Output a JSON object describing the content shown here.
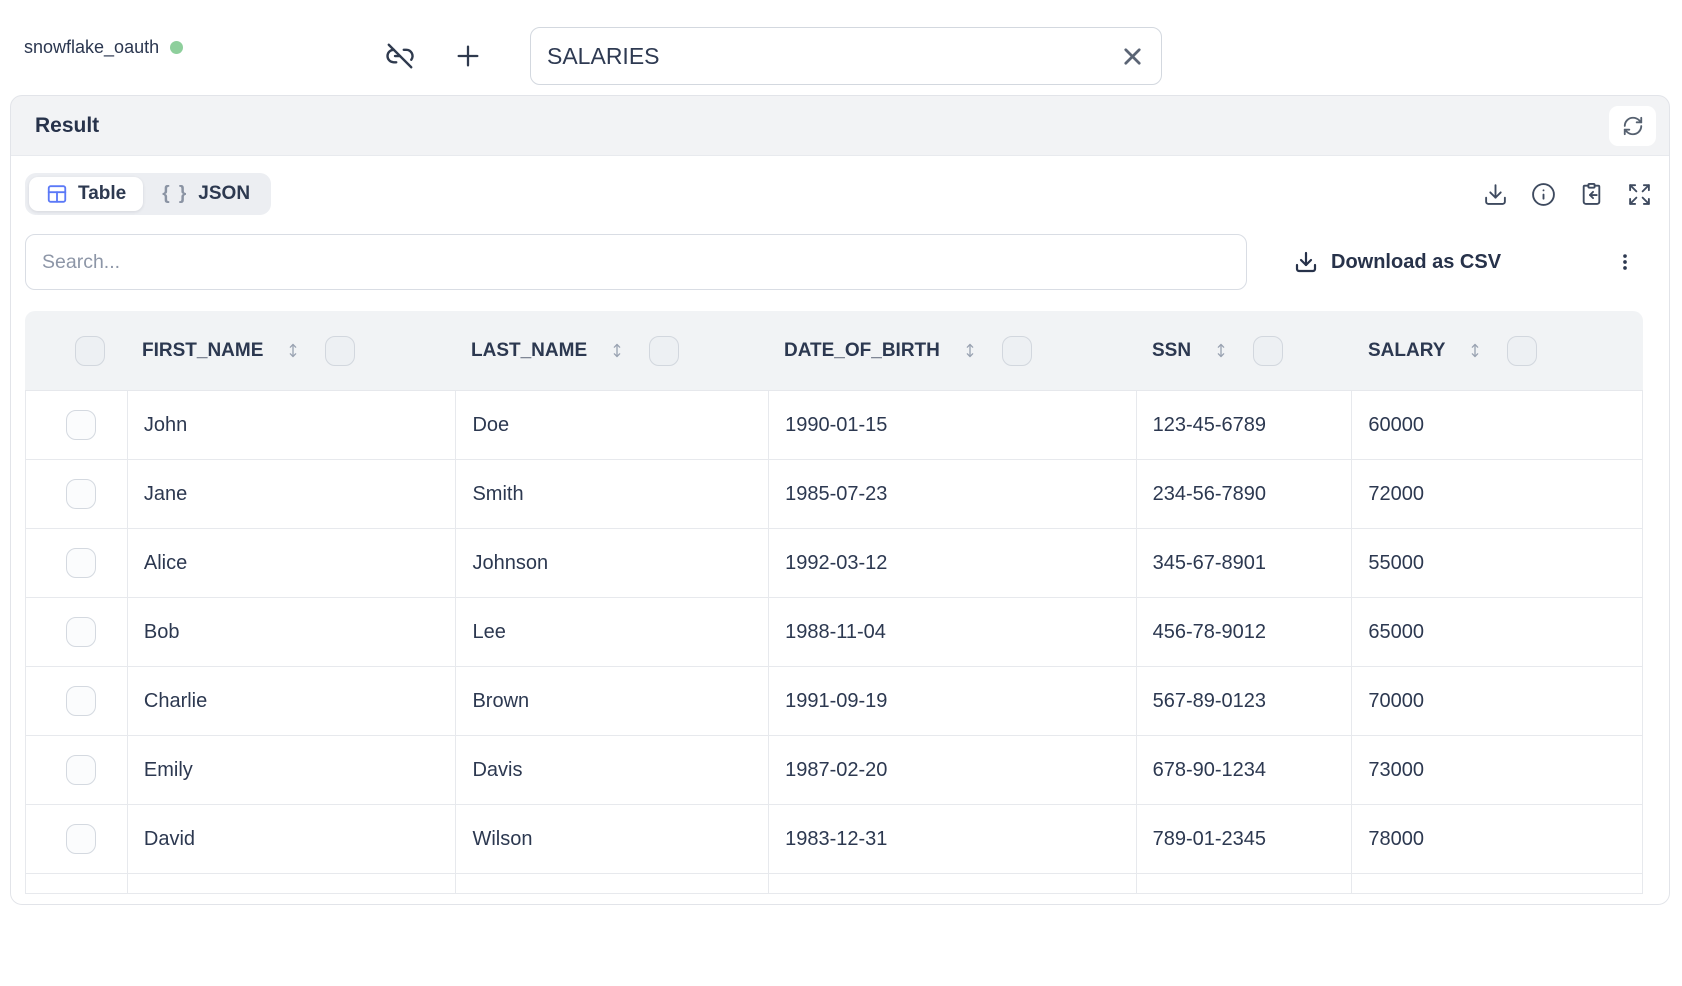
{
  "topbar": {
    "connection_name": "snowflake_oauth",
    "query_name": {
      "value": "SALARIES"
    }
  },
  "panel": {
    "title": "Result"
  },
  "tabs": {
    "table_label": "Table",
    "json_label": "JSON",
    "braces_glyph": "{ }"
  },
  "toolbar_icons": [
    "download-icon",
    "info-icon",
    "clipboard-paste-icon",
    "expand-icon"
  ],
  "search": {
    "placeholder": "Search..."
  },
  "actions": {
    "download_csv": "Download as CSV"
  },
  "table": {
    "columns": [
      {
        "key": "first_name",
        "label": "FIRST_NAME"
      },
      {
        "key": "last_name",
        "label": "LAST_NAME"
      },
      {
        "key": "date_of_birth",
        "label": "DATE_OF_BIRTH"
      },
      {
        "key": "ssn",
        "label": "SSN"
      },
      {
        "key": "salary",
        "label": "SALARY"
      }
    ],
    "rows": [
      [
        "John",
        "Doe",
        "1990-01-15",
        "123-45-6789",
        "60000"
      ],
      [
        "Jane",
        "Smith",
        "1985-07-23",
        "234-56-7890",
        "72000"
      ],
      [
        "Alice",
        "Johnson",
        "1992-03-12",
        "345-67-8901",
        "55000"
      ],
      [
        "Bob",
        "Lee",
        "1988-11-04",
        "456-78-9012",
        "65000"
      ],
      [
        "Charlie",
        "Brown",
        "1991-09-19",
        "567-89-0123",
        "70000"
      ],
      [
        "Emily",
        "Davis",
        "1987-02-20",
        "678-90-1234",
        "73000"
      ],
      [
        "David",
        "Wilson",
        "1983-12-31",
        "789-01-2345",
        "78000"
      ]
    ]
  },
  "colors": {
    "status_green": "#8ecf9c",
    "accent_blue": "#5b79f7"
  }
}
